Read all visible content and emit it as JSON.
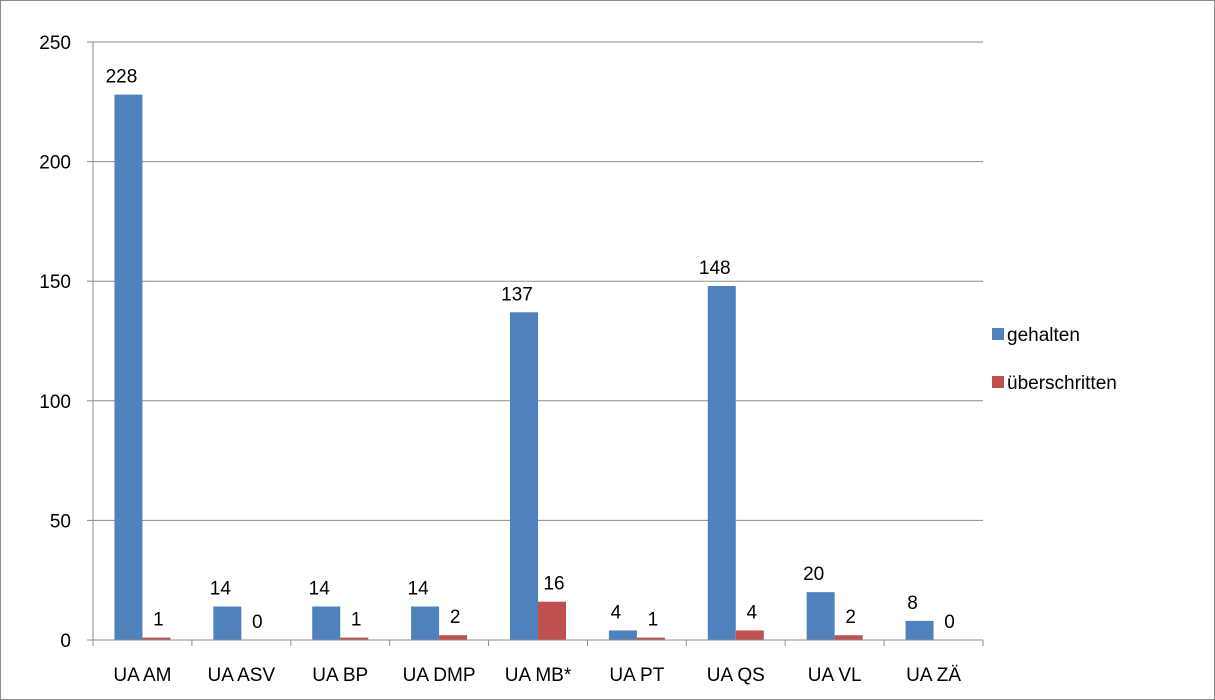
{
  "chart_data": {
    "type": "bar",
    "categories": [
      "UA AM",
      "UA ASV",
      "UA BP",
      "UA DMP",
      "UA MB*",
      "UA PT",
      "UA QS",
      "UA VL",
      "UA ZÄ"
    ],
    "series": [
      {
        "name": "gehalten",
        "color": "#4f81bd",
        "values": [
          228,
          14,
          14,
          14,
          137,
          4,
          148,
          20,
          8
        ]
      },
      {
        "name": "überschritten",
        "color": "#c0504d",
        "values": [
          1,
          0,
          1,
          2,
          16,
          1,
          4,
          2,
          0
        ]
      }
    ],
    "ylim": [
      0,
      250
    ],
    "yticks": [
      0,
      50,
      100,
      150,
      200,
      250
    ],
    "grid": true,
    "legend_position": "right"
  }
}
